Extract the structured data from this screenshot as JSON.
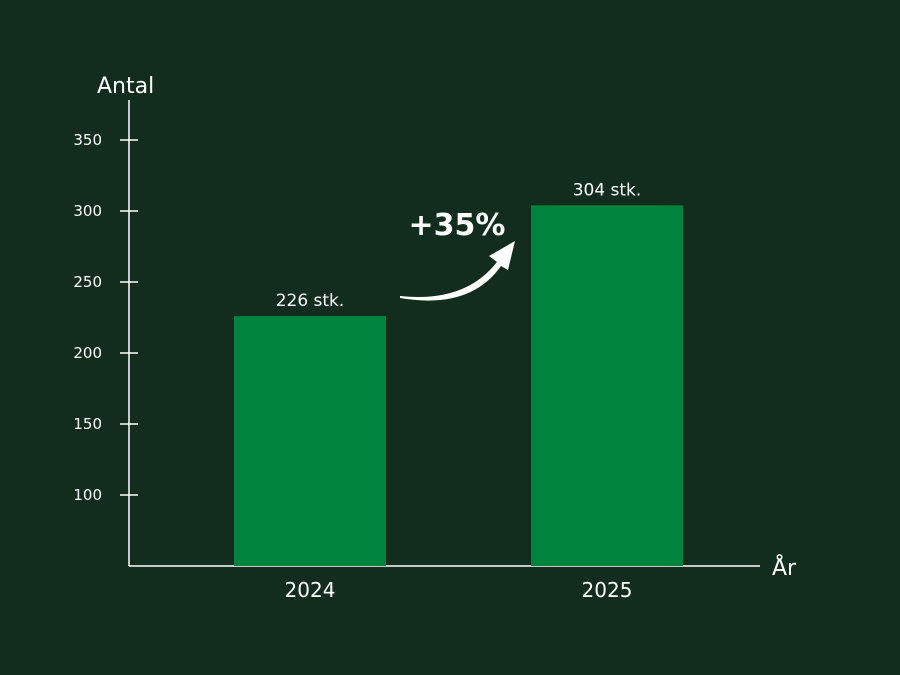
{
  "colors": {
    "background": "#122d1e",
    "bar": "#00843d",
    "axis": "#ffffff",
    "text": "#ffffff"
  },
  "chart_data": {
    "type": "bar",
    "title": "",
    "xlabel": "År",
    "ylabel": "Antal",
    "categories": [
      "2024",
      "2025"
    ],
    "values": [
      226,
      304
    ],
    "data_labels": [
      "226 stk.",
      "304 stk."
    ],
    "yticks": [
      100,
      150,
      200,
      250,
      300,
      350
    ],
    "ylim": [
      50,
      375
    ],
    "grid": false,
    "annotation": "+35%"
  }
}
